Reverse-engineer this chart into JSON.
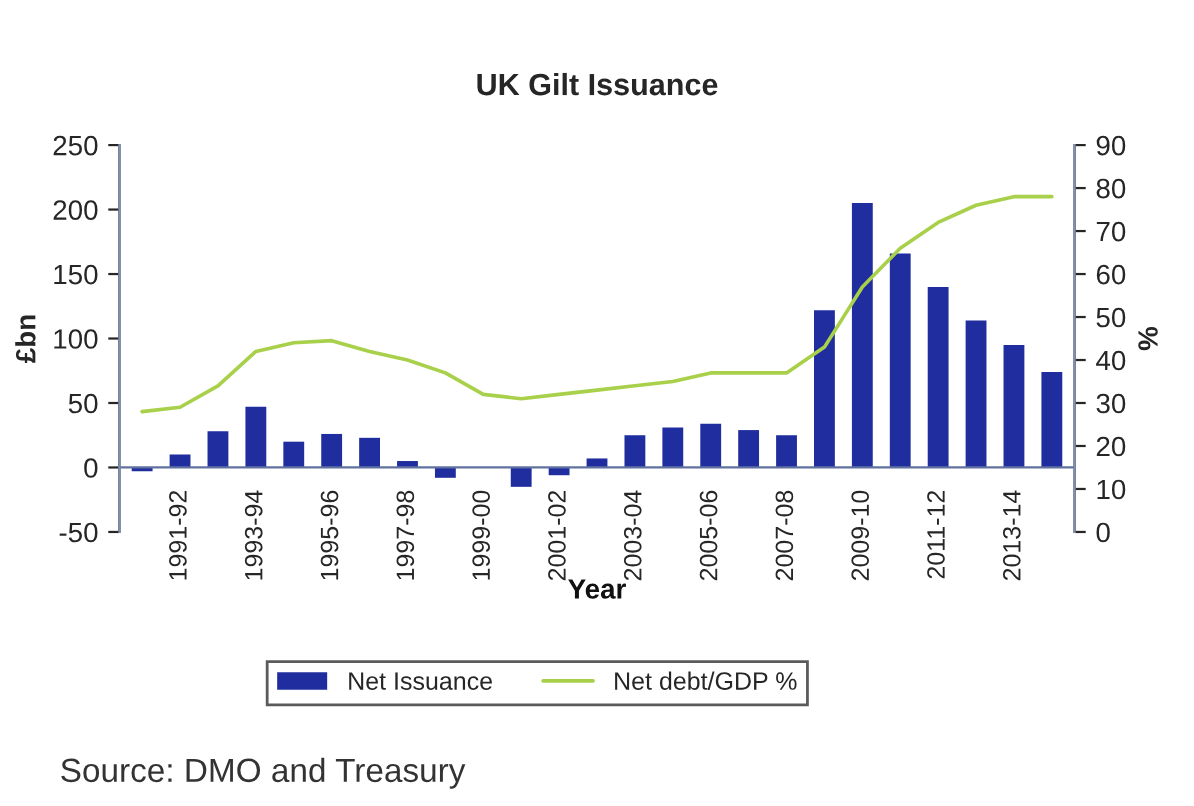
{
  "chart_data": {
    "type": "bar",
    "title": "UK Gilt Issuance",
    "xlabel": "Year",
    "ylabel": "£bn",
    "y2label": "%",
    "categories": [
      null,
      "1991-92",
      null,
      "1993-94",
      null,
      "1995-96",
      null,
      "1997-98",
      null,
      "1999-00",
      null,
      "2001-02",
      null,
      "2003-04",
      null,
      "2005-06",
      null,
      "2007-08",
      null,
      "2009-10",
      null,
      "2011-12",
      null,
      "2013-14",
      null
    ],
    "series": [
      {
        "name": "Net Issuance",
        "color": "#1f2d9e",
        "values": [
          -3,
          10,
          28,
          47,
          20,
          26,
          23,
          5,
          -8,
          0,
          -15,
          -6,
          7,
          25,
          31,
          34,
          29,
          25,
          122,
          205,
          166,
          140,
          114,
          95,
          74
        ]
      },
      {
        "name": "Net debt/GDP %",
        "type": "line",
        "axis": "y2",
        "color": "#a8d04a",
        "values": [
          28,
          29,
          34,
          42,
          44,
          44.5,
          42,
          40,
          37,
          32,
          31,
          32,
          33,
          34,
          35,
          37,
          37,
          37,
          43,
          57,
          66,
          72,
          76,
          78,
          78
        ]
      }
    ],
    "ylim": [
      -50,
      250
    ],
    "yticks": [
      -50,
      0,
      50,
      100,
      150,
      200,
      250
    ],
    "y2lim": [
      0,
      90
    ],
    "y2ticks": [
      0,
      10,
      20,
      30,
      40,
      50,
      60,
      70,
      80,
      90
    ],
    "grid": false,
    "legend": "bottom",
    "annotations": [
      "Source: DMO and Treasury"
    ]
  }
}
